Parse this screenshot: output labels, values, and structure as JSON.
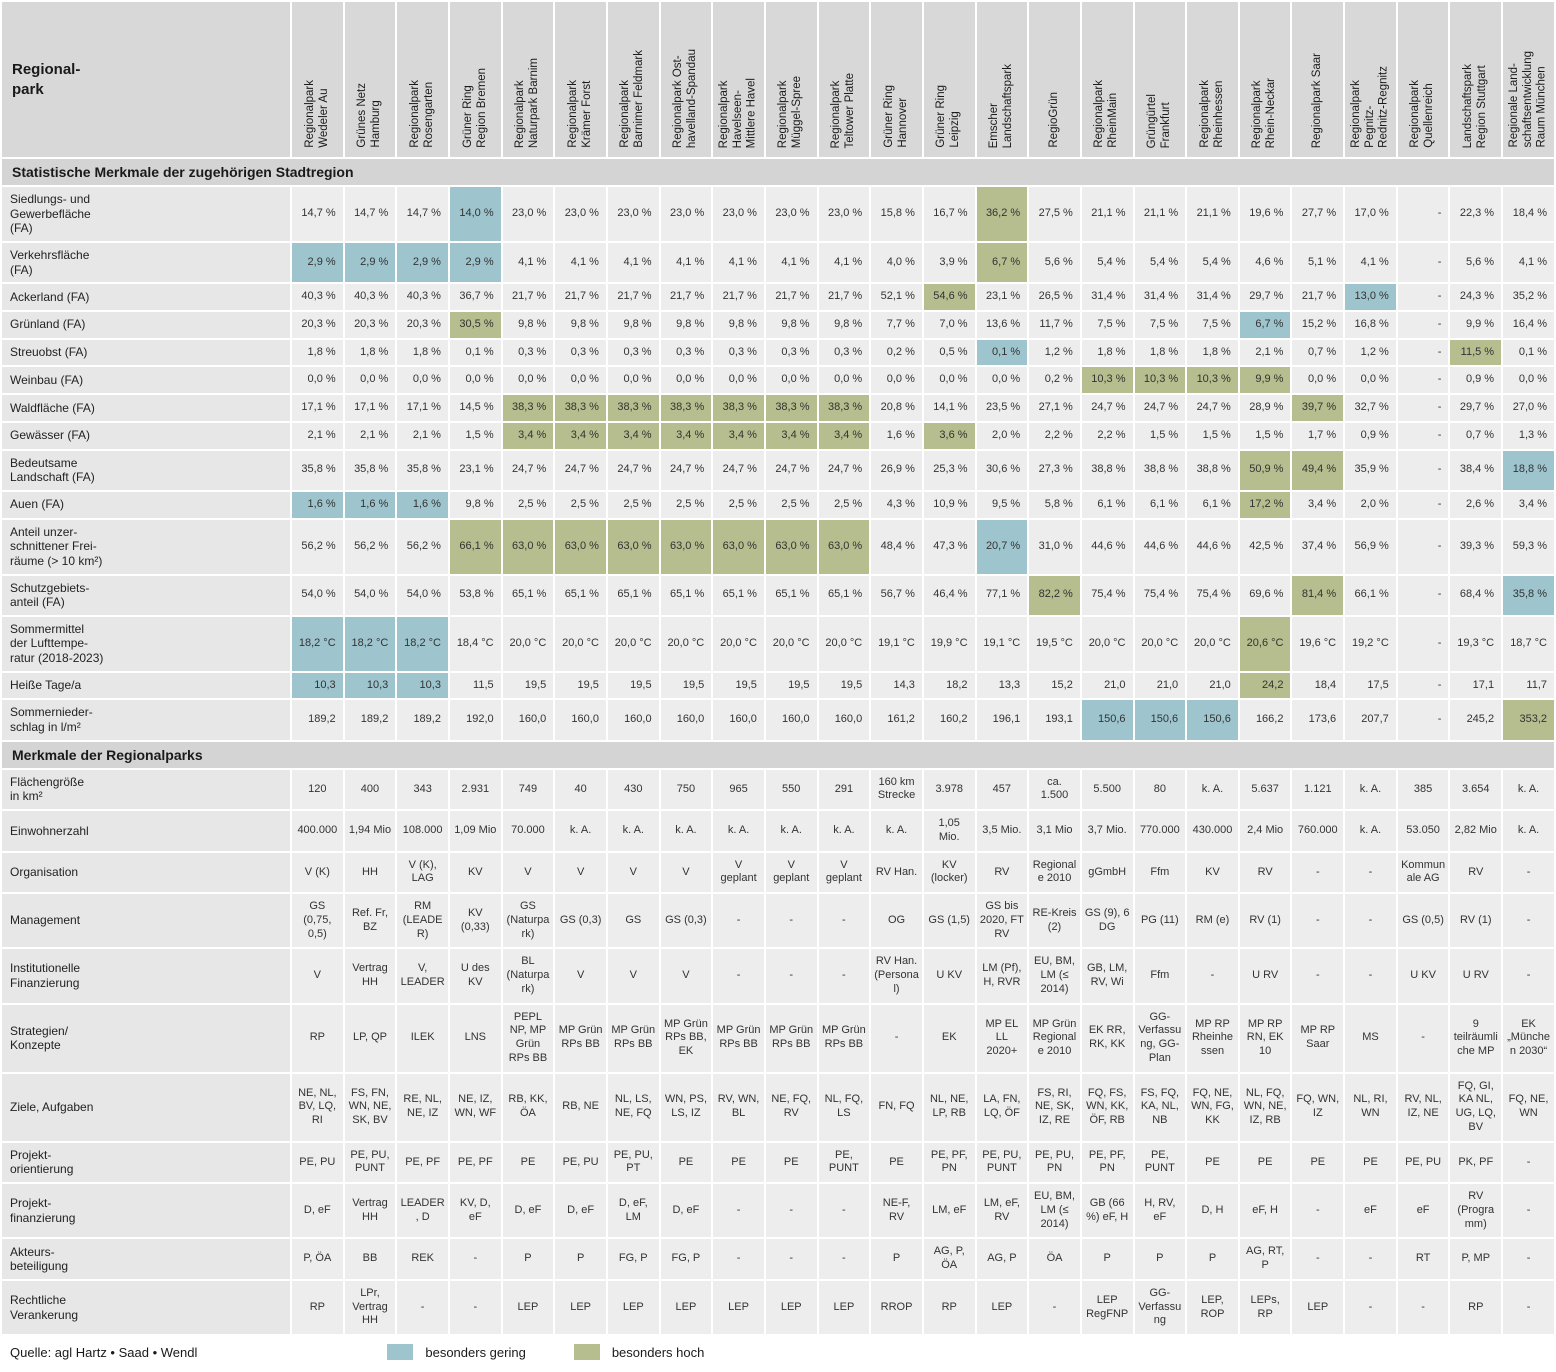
{
  "corner_label": "Regional-\npark",
  "columns": [
    "Regionalpark\nWedeler Au",
    "Grünes Netz\nHamburg",
    "Regionalpark\nRosengarten",
    "Grüner Ring\nRegion Bremen",
    "Regionalpark\nNaturpark Barnim",
    "Regionalpark\nKrämer Forst",
    "Regionalpark\nBarnimer Feldmark",
    "Regionalpark Ost-\nhavelland-Spandau",
    "Regionalpark\nHavelseen-\nMittlere Havel",
    "Regionalpark\nMüggel-Spree",
    "Regionalpark\nTeltower Platte",
    "Grüner Ring\nHannover",
    "Grüner Ring\nLeipzig",
    "Emscher\nLandschaftspark",
    "RegioGrün",
    "Regionalpark\nRheinMain",
    "Grüngürtel\nFrankfurt",
    "Regionalpark\nRheinhessen",
    "Regionalpark\nRhein-Neckar",
    "Regionalpark Saar",
    "Regionalpark\nPegnitz-\nRednitz-Regnitz",
    "Regionalpark\nQuellenreich",
    "Landschaftspark\nRegion Stuttgart",
    "Regionale Land-\nschaftsentwicklung\nRaum München"
  ],
  "sections": [
    {
      "title": "Statistische Merkmale der zugehörigen Stadtregion",
      "numeric": true,
      "rows": [
        {
          "label": "Siedlungs- und\nGewerbefläche\n(FA)",
          "values": [
            "14,7 %",
            "14,7 %",
            "14,7 %",
            "14,0 %",
            "23,0 %",
            "23,0 %",
            "23,0 %",
            "23,0 %",
            "23,0 %",
            "23,0 %",
            "23,0 %",
            "15,8 %",
            "16,7 %",
            "36,2 %",
            "27,5 %",
            "21,1 %",
            "21,1 %",
            "21,1 %",
            "19,6 %",
            "27,7 %",
            "17,0 %",
            "-",
            "22,3 %",
            "18,4 %"
          ],
          "marks": {
            "3": "low",
            "13": "high"
          }
        },
        {
          "label": "Verkehrsfläche\n(FA)",
          "values": [
            "2,9 %",
            "2,9 %",
            "2,9 %",
            "2,9 %",
            "4,1 %",
            "4,1 %",
            "4,1 %",
            "4,1 %",
            "4,1 %",
            "4,1 %",
            "4,1 %",
            "4,0 %",
            "3,9 %",
            "6,7 %",
            "5,6 %",
            "5,4 %",
            "5,4 %",
            "5,4 %",
            "4,6 %",
            "5,1 %",
            "4,1 %",
            "-",
            "5,6 %",
            "4,1 %"
          ],
          "marks": {
            "0": "low",
            "1": "low",
            "2": "low",
            "3": "low",
            "13": "high"
          }
        },
        {
          "label": "Ackerland (FA)",
          "values": [
            "40,3 %",
            "40,3 %",
            "40,3 %",
            "36,7 %",
            "21,7 %",
            "21,7 %",
            "21,7 %",
            "21,7 %",
            "21,7 %",
            "21,7 %",
            "21,7 %",
            "52,1 %",
            "54,6 %",
            "23,1 %",
            "26,5 %",
            "31,4 %",
            "31,4 %",
            "31,4 %",
            "29,7 %",
            "21,7 %",
            "13,0 %",
            "-",
            "24,3 %",
            "35,2 %"
          ],
          "marks": {
            "12": "high",
            "20": "low"
          }
        },
        {
          "label": "Grünland (FA)",
          "values": [
            "20,3 %",
            "20,3 %",
            "20,3 %",
            "30,5 %",
            "9,8 %",
            "9,8 %",
            "9,8 %",
            "9,8 %",
            "9,8 %",
            "9,8 %",
            "9,8 %",
            "7,7 %",
            "7,0 %",
            "13,6 %",
            "11,7 %",
            "7,5 %",
            "7,5 %",
            "7,5 %",
            "6,7 %",
            "15,2 %",
            "16,8 %",
            "-",
            "9,9 %",
            "16,4 %"
          ],
          "marks": {
            "3": "high",
            "18": "low"
          }
        },
        {
          "label": "Streuobst (FA)",
          "values": [
            "1,8 %",
            "1,8 %",
            "1,8 %",
            "0,1 %",
            "0,3 %",
            "0,3 %",
            "0,3 %",
            "0,3 %",
            "0,3 %",
            "0,3 %",
            "0,3 %",
            "0,2 %",
            "0,5 %",
            "0,1 %",
            "1,2 %",
            "1,8 %",
            "1,8 %",
            "1,8 %",
            "2,1 %",
            "0,7 %",
            "1,2 %",
            "-",
            "11,5 %",
            "0,1 %"
          ],
          "marks": {
            "13": "low",
            "22": "high"
          }
        },
        {
          "label": "Weinbau (FA)",
          "values": [
            "0,0 %",
            "0,0 %",
            "0,0 %",
            "0,0 %",
            "0,0 %",
            "0,0 %",
            "0,0 %",
            "0,0 %",
            "0,0 %",
            "0,0 %",
            "0,0 %",
            "0,0 %",
            "0,0 %",
            "0,0 %",
            "0,2 %",
            "10,3 %",
            "10,3 %",
            "10,3 %",
            "9,9 %",
            "0,0 %",
            "0,0 %",
            "-",
            "0,9 %",
            "0,0 %"
          ],
          "marks": {
            "15": "high",
            "16": "high",
            "17": "high",
            "18": "high"
          }
        },
        {
          "label": "Waldfläche (FA)",
          "values": [
            "17,1 %",
            "17,1 %",
            "17,1 %",
            "14,5 %",
            "38,3 %",
            "38,3 %",
            "38,3 %",
            "38,3 %",
            "38,3 %",
            "38,3 %",
            "38,3 %",
            "20,8 %",
            "14,1 %",
            "23,5 %",
            "27,1 %",
            "24,7 %",
            "24,7 %",
            "24,7 %",
            "28,9 %",
            "39,7 %",
            "32,7 %",
            "-",
            "29,7 %",
            "27,0 %"
          ],
          "marks": {
            "4": "high",
            "5": "high",
            "6": "high",
            "7": "high",
            "8": "high",
            "9": "high",
            "10": "high",
            "19": "high"
          }
        },
        {
          "label": "Gewässer (FA)",
          "values": [
            "2,1 %",
            "2,1 %",
            "2,1 %",
            "1,5 %",
            "3,4 %",
            "3,4 %",
            "3,4 %",
            "3,4 %",
            "3,4 %",
            "3,4 %",
            "3,4 %",
            "1,6 %",
            "3,6 %",
            "2,0 %",
            "2,2 %",
            "2,2 %",
            "1,5 %",
            "1,5 %",
            "1,5 %",
            "1,7 %",
            "0,9 %",
            "-",
            "0,7 %",
            "1,3 %"
          ],
          "marks": {
            "4": "high",
            "5": "high",
            "6": "high",
            "7": "high",
            "8": "high",
            "9": "high",
            "10": "high",
            "12": "high"
          }
        },
        {
          "label": "Bedeutsame\nLandschaft (FA)",
          "values": [
            "35,8 %",
            "35,8 %",
            "35,8 %",
            "23,1 %",
            "24,7 %",
            "24,7 %",
            "24,7 %",
            "24,7 %",
            "24,7 %",
            "24,7 %",
            "24,7 %",
            "26,9 %",
            "25,3 %",
            "30,6 %",
            "27,3 %",
            "38,8 %",
            "38,8 %",
            "38,8 %",
            "50,9 %",
            "49,4 %",
            "35,9 %",
            "-",
            "38,4 %",
            "18,8 %"
          ],
          "marks": {
            "18": "high",
            "19": "high",
            "23": "low"
          }
        },
        {
          "label": "Auen (FA)",
          "values": [
            "1,6 %",
            "1,6 %",
            "1,6 %",
            "9,8 %",
            "2,5 %",
            "2,5 %",
            "2,5 %",
            "2,5 %",
            "2,5 %",
            "2,5 %",
            "2,5 %",
            "4,3 %",
            "10,9 %",
            "9,5 %",
            "5,8 %",
            "6,1 %",
            "6,1 %",
            "6,1 %",
            "17,2 %",
            "3,4 %",
            "2,0 %",
            "-",
            "2,6 %",
            "3,4 %"
          ],
          "marks": {
            "0": "low",
            "1": "low",
            "2": "low",
            "18": "high"
          }
        },
        {
          "label": "Anteil unzer-\nschnittener Frei-\nräume (> 10 km²)",
          "values": [
            "56,2 %",
            "56,2 %",
            "56,2 %",
            "66,1 %",
            "63,0 %",
            "63,0 %",
            "63,0 %",
            "63,0 %",
            "63,0 %",
            "63,0 %",
            "63,0 %",
            "48,4 %",
            "47,3 %",
            "20,7 %",
            "31,0 %",
            "44,6 %",
            "44,6 %",
            "44,6 %",
            "42,5 %",
            "37,4 %",
            "56,9 %",
            "-",
            "39,3 %",
            "59,3 %"
          ],
          "marks": {
            "3": "high",
            "4": "high",
            "5": "high",
            "6": "high",
            "7": "high",
            "8": "high",
            "9": "high",
            "10": "high",
            "13": "low"
          }
        },
        {
          "label": "Schutzgebiets-\nanteil (FA)",
          "values": [
            "54,0 %",
            "54,0 %",
            "54,0 %",
            "53,8 %",
            "65,1 %",
            "65,1 %",
            "65,1 %",
            "65,1 %",
            "65,1 %",
            "65,1 %",
            "65,1 %",
            "56,7 %",
            "46,4 %",
            "77,1 %",
            "82,2 %",
            "75,4 %",
            "75,4 %",
            "75,4 %",
            "69,6 %",
            "81,4 %",
            "66,1 %",
            "-",
            "68,4 %",
            "35,8 %"
          ],
          "marks": {
            "14": "high",
            "19": "high",
            "23": "low"
          }
        },
        {
          "label": "Sommermittel\nder Lufttempe-\nratur (2018-2023)",
          "values": [
            "18,2 °C",
            "18,2 °C",
            "18,2 °C",
            "18,4 °C",
            "20,0 °C",
            "20,0 °C",
            "20,0 °C",
            "20,0 °C",
            "20,0 °C",
            "20,0 °C",
            "20,0 °C",
            "19,1 °C",
            "19,9 °C",
            "19,1 °C",
            "19,5 °C",
            "20,0 °C",
            "20,0 °C",
            "20,0 °C",
            "20,6 °C",
            "19,6 °C",
            "19,2 °C",
            "-",
            "19,3 °C",
            "18,7 °C"
          ],
          "marks": {
            "0": "low",
            "1": "low",
            "2": "low",
            "18": "high"
          }
        },
        {
          "label": "Heiße Tage/a",
          "values": [
            "10,3",
            "10,3",
            "10,3",
            "11,5",
            "19,5",
            "19,5",
            "19,5",
            "19,5",
            "19,5",
            "19,5",
            "19,5",
            "14,3",
            "18,2",
            "13,3",
            "15,2",
            "21,0",
            "21,0",
            "21,0",
            "24,2",
            "18,4",
            "17,5",
            "-",
            "17,1",
            "11,7"
          ],
          "marks": {
            "0": "low",
            "1": "low",
            "2": "low",
            "18": "high"
          }
        },
        {
          "label": "Sommernieder-\nschlag in l/m²",
          "values": [
            "189,2",
            "189,2",
            "189,2",
            "192,0",
            "160,0",
            "160,0",
            "160,0",
            "160,0",
            "160,0",
            "160,0",
            "160,0",
            "161,2",
            "160,2",
            "196,1",
            "193,1",
            "150,6",
            "150,6",
            "150,6",
            "166,2",
            "173,6",
            "207,7",
            "-",
            "245,2",
            "353,2"
          ],
          "marks": {
            "15": "low",
            "16": "low",
            "17": "low",
            "23": "high"
          }
        }
      ]
    },
    {
      "title": "Merkmale der Regionalparks",
      "numeric": false,
      "rows": [
        {
          "label": "Flächengröße\nin km²",
          "values": [
            "120",
            "400",
            "343",
            "2.931",
            "749",
            "40",
            "430",
            "750",
            "965",
            "550",
            "291",
            "160 km Strecke",
            "3.978",
            "457",
            "ca. 1.500",
            "5.500",
            "80",
            "k. A.",
            "5.637",
            "1.121",
            "k. A.",
            "385",
            "3.654",
            "k. A."
          ]
        },
        {
          "label": "Einwohnerzahl",
          "values": [
            "400.000",
            "1,94 Mio",
            "108.000",
            "1,09 Mio",
            "70.000",
            "k. A.",
            "k. A.",
            "k. A.",
            "k. A.",
            "k. A.",
            "k. A.",
            "k. A.",
            "1,05 Mio.",
            "3,5 Mio.",
            "3,1 Mio",
            "3,7 Mio.",
            "770.000",
            "430.000",
            "2,4 Mio",
            "760.000",
            "k. A.",
            "53.050",
            "2,82 Mio",
            "k. A."
          ]
        },
        {
          "label": "Organisation",
          "values": [
            "V (K)",
            "HH",
            "V (K), LAG",
            "KV",
            "V",
            "V",
            "V",
            "V",
            "V geplant",
            "V geplant",
            "V geplant",
            "RV Han.",
            "KV (locker)",
            "RV",
            "Regionale 2010",
            "gGmbH",
            "Ffm",
            "KV",
            "RV",
            "-",
            "-",
            "Kommunale AG",
            "RV",
            "-"
          ]
        },
        {
          "label": "Management",
          "values": [
            "GS (0,75, 0,5)",
            "Ref. Fr, BZ",
            "RM (LEADER)",
            "KV (0,33)",
            "GS (Naturpark)",
            "GS (0,3)",
            "GS",
            "GS (0,3)",
            "-",
            "-",
            "-",
            "OG",
            "GS (1,5)",
            "GS bis 2020, FT RV",
            "RE-Kreis (2)",
            "GS (9), 6 DG",
            "PG (11)",
            "RM (e)",
            "RV (1)",
            "-",
            "-",
            "GS (0,5)",
            "RV (1)",
            "-"
          ]
        },
        {
          "label": "Institutionelle\nFinanzierung",
          "values": [
            "V",
            "Vertrag HH",
            "V, LEADER",
            "U des KV",
            "BL (Naturpark)",
            "V",
            "V",
            "V",
            "-",
            "-",
            "-",
            "RV Han. (Personal)",
            "U KV",
            "LM (Pf), H, RVR",
            "EU, BM, LM (≤ 2014)",
            "GB, LM, RV, Wi",
            "Ffm",
            "-",
            "U RV",
            "-",
            "-",
            "U KV",
            "U RV",
            "-"
          ]
        },
        {
          "label": "Strategien/\nKonzepte",
          "values": [
            "RP",
            "LP, QP",
            "ILEK",
            "LNS",
            "PEPL NP, MP Grün RPs BB",
            "MP Grün RPs BB",
            "MP Grün RPs BB",
            "MP Grün RPs BB, EK",
            "MP Grün RPs BB",
            "MP Grün RPs BB",
            "MP Grün RPs BB",
            "-",
            "EK",
            "MP EL LL 2020+",
            "MP Grün Regionale 2010",
            "EK RR, RK, KK",
            "GG-Verfassung, GG-Plan",
            "MP RP Rheinhessen",
            "MP RP RN, EK 10",
            "MP RP Saar",
            "MS",
            "-",
            "9 teilräumliche MP",
            "EK „München 2030“"
          ]
        },
        {
          "label": "Ziele, Aufgaben",
          "values": [
            "NE, NL, BV, LQ, RI",
            "FS, FN, WN, NE, SK, BV",
            "RE, NL, NE, IZ",
            "NE, IZ, WN, WF",
            "RB, KK, ÖA",
            "RB, NE",
            "NL, LS, NE, FQ",
            "WN, PS, LS, IZ",
            "RV, WN, BL",
            "NE, FQ, RV",
            "NL, FQ, LS",
            "FN, FQ",
            "NL, NE, LP, RB",
            "LA, FN, LQ, ÖF",
            "FS, RI, NE, SK, IZ, RE",
            "FQ, FS, WN, KK, ÖF, RB",
            "FS, FQ, KA, NL, NB",
            "FQ, NE, WN, FG, KK",
            "NL, FQ, WN, NE, IZ, RB",
            "FQ, WN, IZ",
            "NL, RI, WN",
            "RV, NL, IZ, NE",
            "FQ, GI, KA NL, UG, LQ, BV",
            "FQ, NE, WN"
          ]
        },
        {
          "label": "Projekt-\norientierung",
          "values": [
            "PE, PU",
            "PE, PU, PUNT",
            "PE, PF",
            "PE, PF",
            "PE",
            "PE, PU",
            "PE, PU, PT",
            "PE",
            "PE",
            "PE",
            "PE, PUNT",
            "PE",
            "PE, PF, PN",
            "PE, PU, PUNT",
            "PE, PU, PN",
            "PE, PF, PN",
            "PE, PUNT",
            "PE",
            "PE",
            "PE",
            "PE",
            "PE, PU",
            "PK, PF",
            "-"
          ]
        },
        {
          "label": "Projekt-\nfinanzierung",
          "values": [
            "D, eF",
            "Vertrag HH",
            "LEADER, D",
            "KV, D, eF",
            "D, eF",
            "D, eF",
            "D, eF, LM",
            "D, eF",
            "-",
            "-",
            "-",
            "NE-F, RV",
            "LM, eF",
            "LM, eF, RV",
            "EU, BM, LM (≤ 2014)",
            "GB (66 %) eF, H",
            "H, RV, eF",
            "D, H",
            "eF, H",
            "-",
            "eF",
            "eF",
            "RV (Programm)",
            "-"
          ]
        },
        {
          "label": "Akteurs-\nbeteiligung",
          "values": [
            "P, ÖA",
            "BB",
            "REK",
            "-",
            "P",
            "P",
            "FG, P",
            "FG, P",
            "-",
            "-",
            "-",
            "P",
            "AG, P, ÖA",
            "AG, P",
            "ÖA",
            "P",
            "P",
            "P",
            "AG, RT, P",
            "-",
            "-",
            "RT",
            "P, MP",
            "-"
          ]
        },
        {
          "label": "Rechtliche\nVerankerung",
          "values": [
            "RP",
            "LPr, Vertrag HH",
            "-",
            "-",
            "LEP",
            "LEP",
            "LEP",
            "LEP",
            "LEP",
            "LEP",
            "LEP",
            "RROP",
            "RP",
            "LEP",
            "-",
            "LEP RegFNP",
            "GG-Verfassung",
            "LEP, ROP",
            "LEPs, RP",
            "LEP",
            "-",
            "-",
            "RP",
            "-"
          ]
        }
      ]
    }
  ],
  "footer": {
    "source": "Quelle:  agl Hartz • Saad • Wendl",
    "legend_low": "besonders gering",
    "legend_high": "besonders hoch"
  },
  "colors": {
    "highlight_low": "#9ec5ce",
    "highlight_high": "#b6bd8e"
  }
}
